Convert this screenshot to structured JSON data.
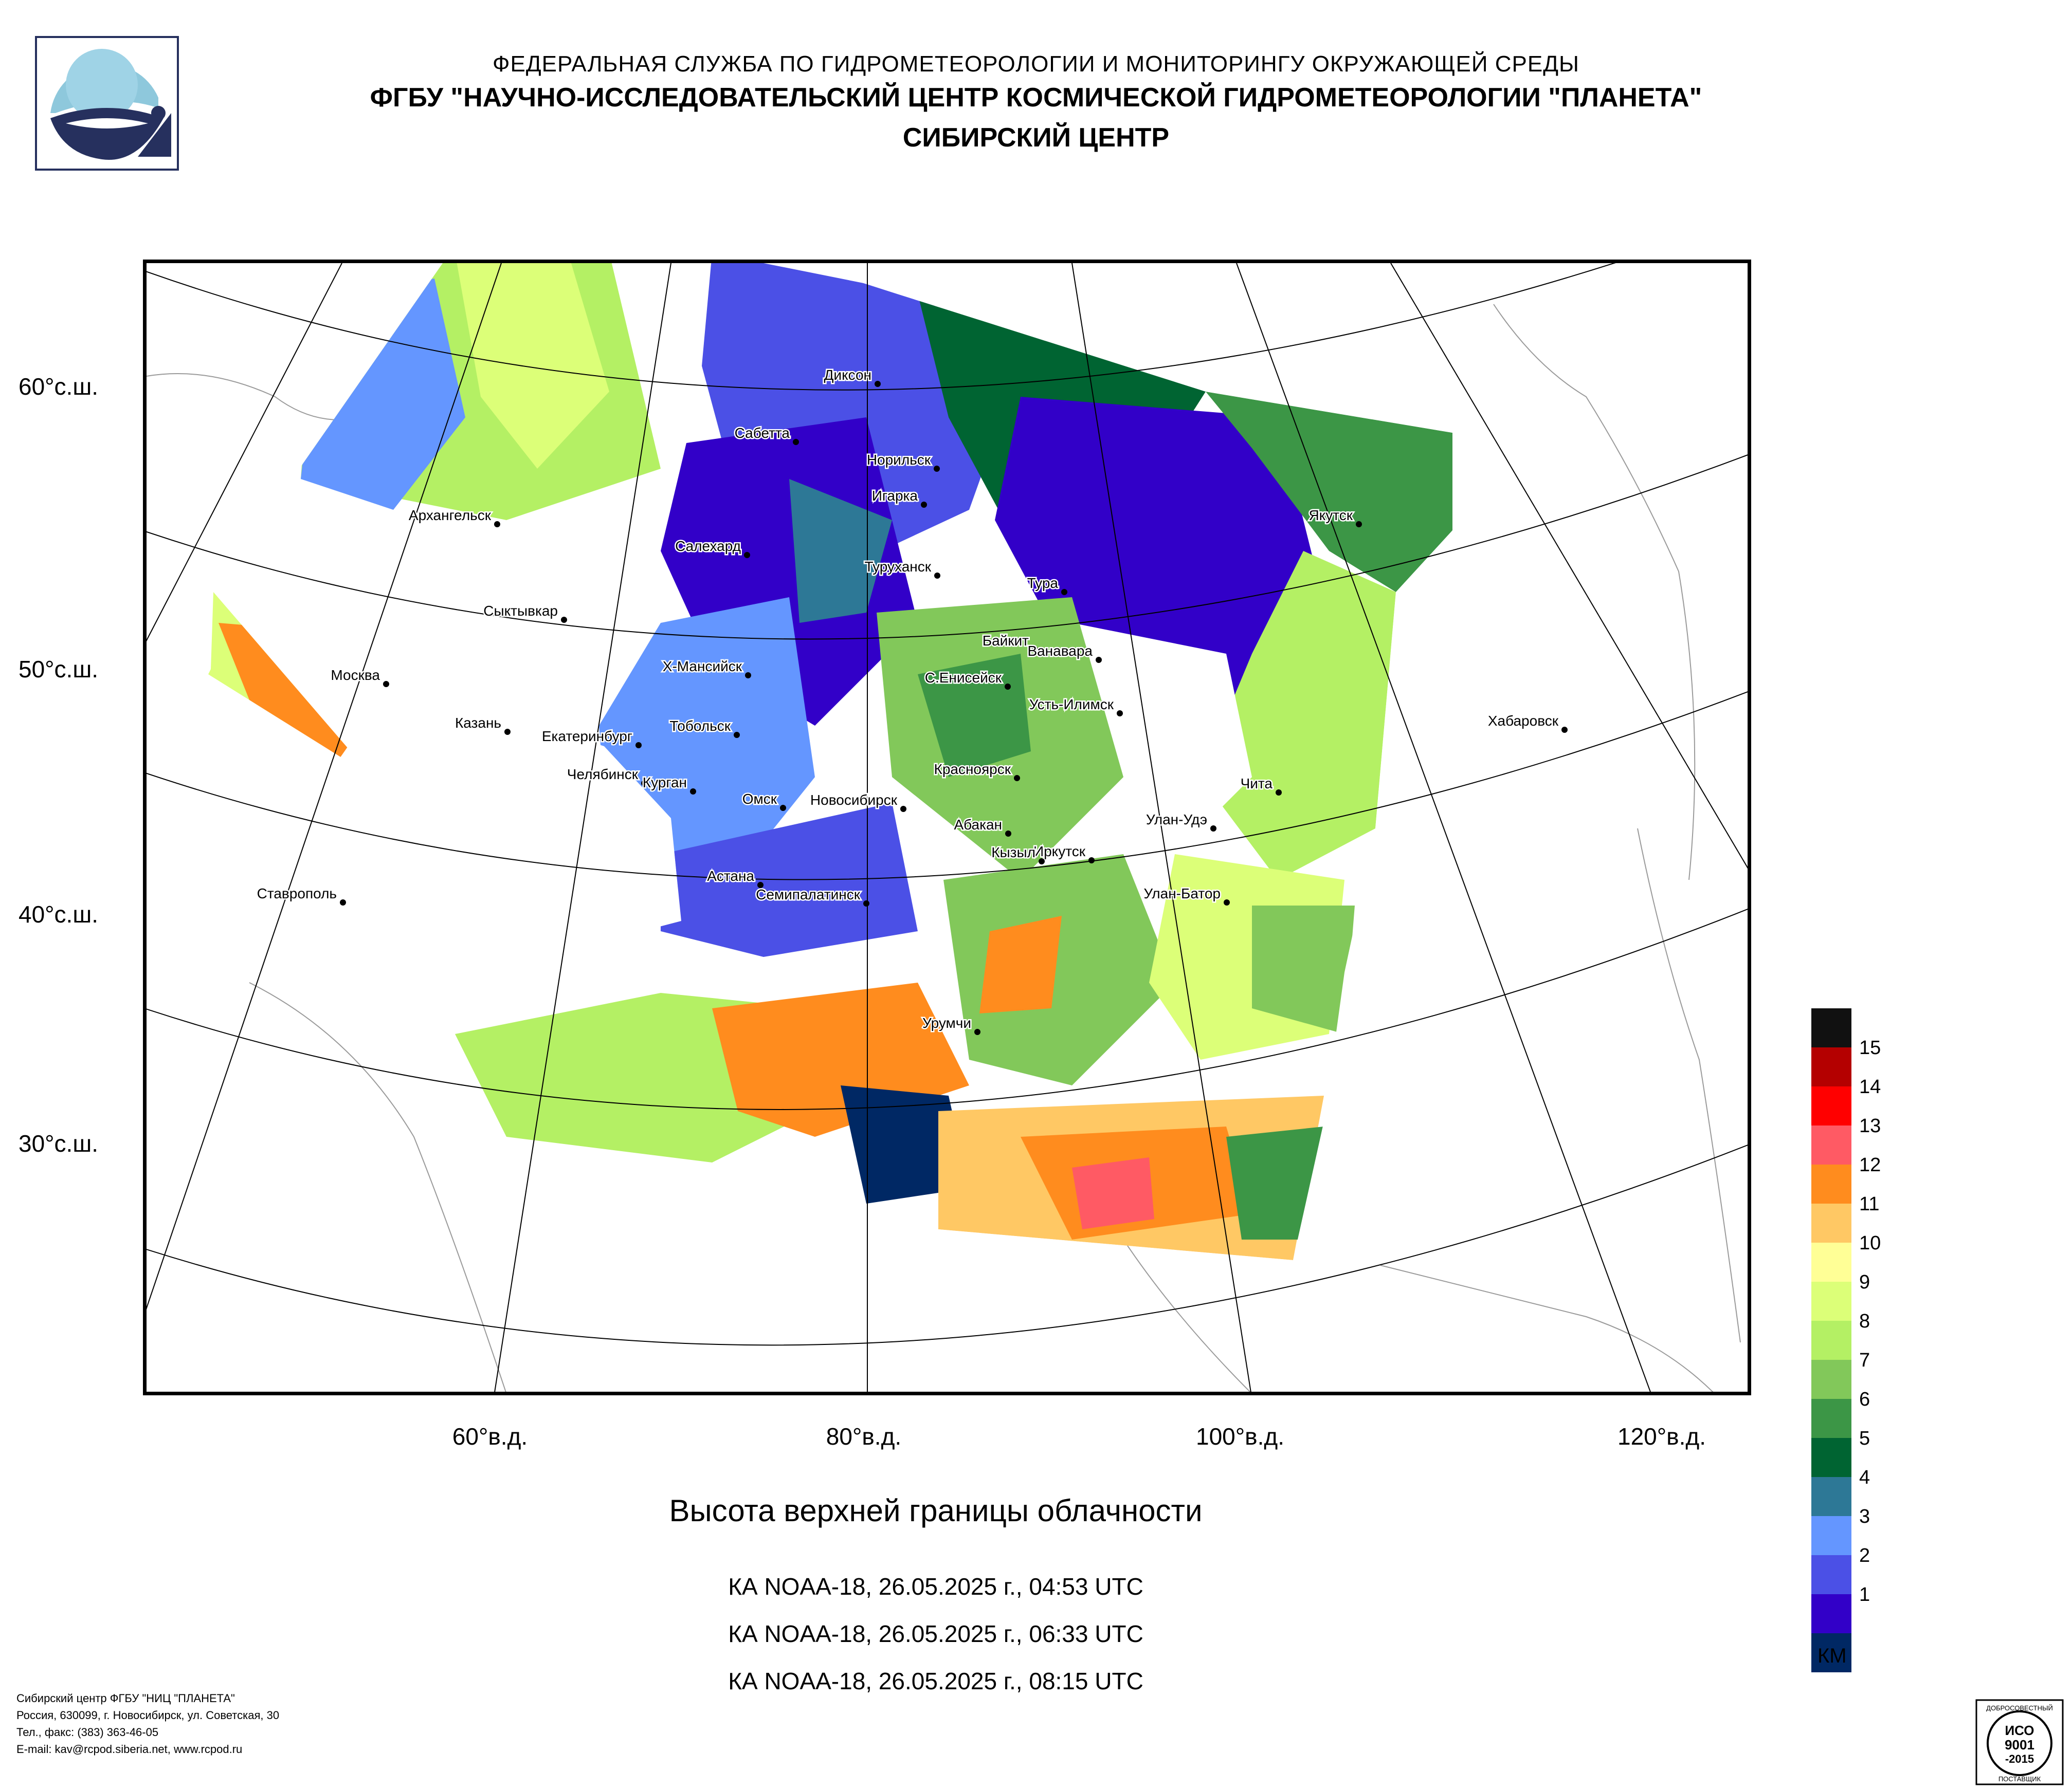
{
  "header": {
    "org": "ФЕДЕРАЛЬНАЯ СЛУЖБА ПО ГИДРОМЕТЕОРОЛОГИИ И МОНИТОРИНГУ ОКРУЖАЮЩЕЙ СРЕДЫ",
    "center": "ФГБУ \"НАУЧНО-ИССЛЕДОВАТЕЛЬСКИЙ ЦЕНТР КОСМИЧЕСКОЙ ГИДРОМЕТЕОРОЛОГИИ \"ПЛАНЕТА\"",
    "branch": "СИБИРСКИЙ ЦЕНТР"
  },
  "map": {
    "lat_labels": [
      "60°с.ш.",
      "50°с.ш.",
      "40°с.ш.",
      "30°с.ш."
    ],
    "lon_labels": [
      "60°в.д.",
      "80°в.д.",
      "100°в.д.",
      "120°в.д."
    ],
    "cities": [
      {
        "name": "Диксон"
      },
      {
        "name": "Сабетта"
      },
      {
        "name": "Норильск"
      },
      {
        "name": "Игарка"
      },
      {
        "name": "Архангельск"
      },
      {
        "name": "Салехард"
      },
      {
        "name": "Туруханск"
      },
      {
        "name": "Тура"
      },
      {
        "name": "Якутск"
      },
      {
        "name": "Сыктывкар"
      },
      {
        "name": "Байкит"
      },
      {
        "name": "Ванавара"
      },
      {
        "name": "Москва"
      },
      {
        "name": "Х-Мансийск"
      },
      {
        "name": "С.Енисейск"
      },
      {
        "name": "Усть-Илимск"
      },
      {
        "name": "Казань"
      },
      {
        "name": "Тобольск"
      },
      {
        "name": "Екатеринбург"
      },
      {
        "name": "Хабаровск"
      },
      {
        "name": "Красноярск"
      },
      {
        "name": "Челябинск"
      },
      {
        "name": "Курган"
      },
      {
        "name": "Чита"
      },
      {
        "name": "Омск"
      },
      {
        "name": "Новосибирск"
      },
      {
        "name": "Абакан"
      },
      {
        "name": "Улан-Удэ"
      },
      {
        "name": "Иркутск"
      },
      {
        "name": "Кызыл"
      },
      {
        "name": "Астана"
      },
      {
        "name": "Ставрополь"
      },
      {
        "name": "Семипалатинск"
      },
      {
        "name": "Улан-Батор"
      },
      {
        "name": "Урумчи"
      }
    ]
  },
  "product": {
    "title": "Высота верхней границы облачности",
    "passes": [
      "КА NOAA-18, 26.05.2025 г., 04:53 UTC",
      "КА NOAA-18, 26.05.2025 г., 06:33 UTC",
      "КА NOAA-18, 26.05.2025 г., 08:15 UTC"
    ]
  },
  "legend": {
    "unit": "КМ",
    "levels": [
      {
        "label": "",
        "color": "#111111"
      },
      {
        "label": "15",
        "color": "#b40000"
      },
      {
        "label": "14",
        "color": "#ff0000"
      },
      {
        "label": "13",
        "color": "#ff5a64"
      },
      {
        "label": "12",
        "color": "#ff8c1e"
      },
      {
        "label": "11",
        "color": "#ffc864"
      },
      {
        "label": "10",
        "color": "#ffff96"
      },
      {
        "label": "9",
        "color": "#dcff78"
      },
      {
        "label": "8",
        "color": "#b4f064"
      },
      {
        "label": "7",
        "color": "#82c85a"
      },
      {
        "label": "6",
        "color": "#3c9646"
      },
      {
        "label": "5",
        "color": "#006432"
      },
      {
        "label": "4",
        "color": "#2d7896"
      },
      {
        "label": "3",
        "color": "#6496ff"
      },
      {
        "label": "2",
        "color": "#4b50e6"
      },
      {
        "label": "1",
        "color": "#3200c8"
      },
      {
        "label": "",
        "color": "#002864"
      }
    ]
  },
  "footer": {
    "lines": [
      "Сибирский центр ФГБУ \"НИЦ \"ПЛАНЕТА\"",
      "Россия, 630099, г. Новосибирск, ул. Советская, 30",
      "Тел., факс: (383) 363-46-05",
      "E-mail: kav@rcpod.siberia.net, www.rcpod.ru"
    ]
  },
  "iso": {
    "top": "ДОБРОСОВЕСТНЫЙ",
    "line1": "ИСО",
    "line2": "9001",
    "line3": "-2015",
    "bottom": "ПОСТАВЩИК"
  }
}
